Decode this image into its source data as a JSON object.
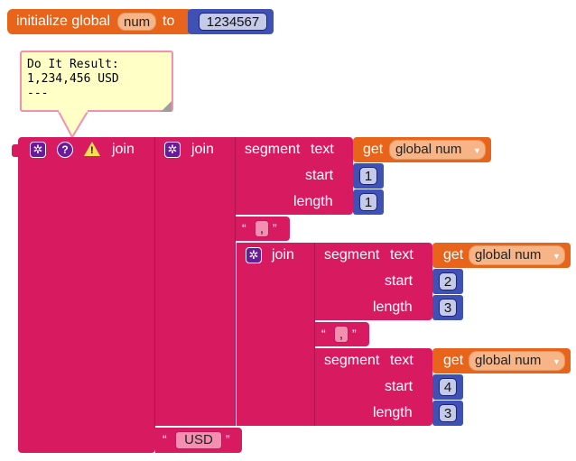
{
  "init_block": {
    "label_initialize": "initialize global",
    "var_name": "num",
    "label_to": "to",
    "value": "1234567"
  },
  "tooltip": {
    "line1": "Do It Result:",
    "line2": "1,234,456 USD",
    "line3": "---"
  },
  "main": {
    "join_label": "join",
    "segment_label": "segment",
    "text_label": "text",
    "get_label": "get",
    "var_label": "global num",
    "start_label": "start",
    "length_label": "length",
    "comma": ",",
    "usd": "USD",
    "open_quote": "“",
    "close_quote": "”",
    "seg1": {
      "start": "1",
      "length": "1"
    },
    "seg2": {
      "start": "2",
      "length": "3"
    },
    "seg3": {
      "start": "4",
      "length": "3"
    }
  },
  "icons": {
    "gear": "gear-icon",
    "question": "question-icon",
    "warning": "warning-icon"
  },
  "colors": {
    "text_block": "#d81b60",
    "variable_block": "#e8641b",
    "math_block": "#3f51b5"
  }
}
